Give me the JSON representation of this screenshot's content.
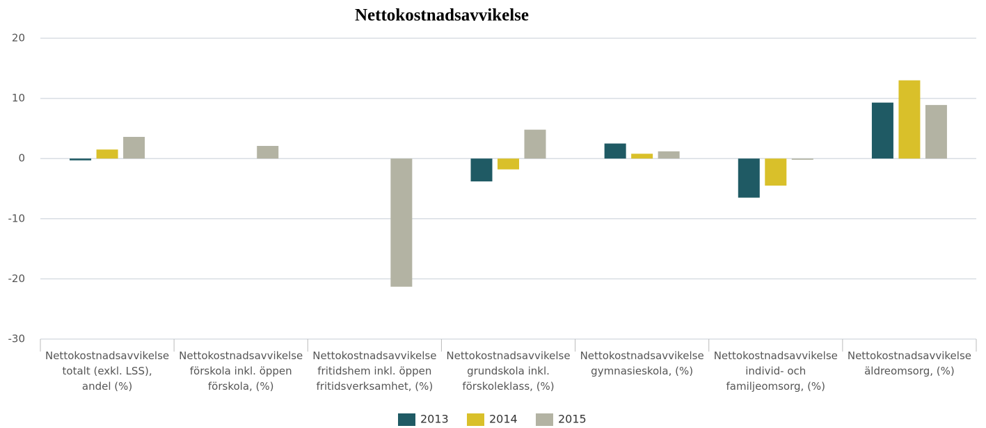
{
  "chart_data": {
    "type": "bar",
    "title": "Nettokostnadsavvikelse",
    "categories": [
      "Nettokostnadsavvikelse\ntotalt (exkl. LSS),\nandel (%)",
      "Nettokostnadsavvikelse\nförskola inkl. öppen\nförskola, (%)",
      "Nettokostnadsavvikelse\nfritidshem inkl. öppen\nfritidsverksamhet, (%)",
      "Nettokostnadsavvikelse\ngrundskola inkl.\nförskoleklass, (%)",
      "Nettokostnadsavvikelse\ngymnasieskola, (%)",
      "Nettokostnadsavvikelse\nindivid- och\nfamiljeomsorg, (%)",
      "Nettokostnadsavvikelse\näldreomsorg, (%)"
    ],
    "series": [
      {
        "name": "2013",
        "color": "#1f5a64",
        "values": [
          -0.3,
          null,
          null,
          -3.8,
          2.5,
          -6.5,
          9.3
        ]
      },
      {
        "name": "2014",
        "color": "#d9c02a",
        "values": [
          1.5,
          null,
          null,
          -1.8,
          0.8,
          -4.5,
          13.0
        ]
      },
      {
        "name": "2015",
        "color": "#b3b3a3",
        "values": [
          3.6,
          2.1,
          -21.3,
          4.8,
          1.2,
          -0.2,
          8.9
        ]
      }
    ],
    "ylim": [
      -30,
      20
    ],
    "yticks": [
      -30,
      -20,
      -10,
      0,
      10,
      20
    ],
    "grid": true,
    "legend": "bottom"
  }
}
